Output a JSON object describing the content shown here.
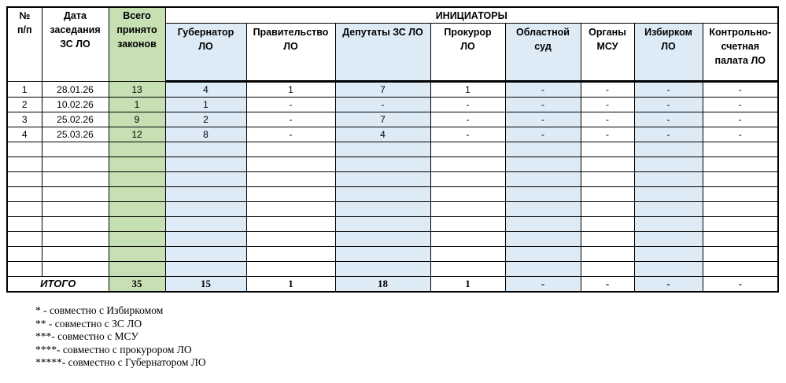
{
  "colors": {
    "total_column": "#c6e0b4",
    "initiator_highlight": "#ddebf7"
  },
  "header": {
    "num": [
      "№",
      "п/п"
    ],
    "date": [
      "Дата",
      "заседания",
      "ЗС ЛО"
    ],
    "total": [
      "Всего",
      "принято",
      "законов"
    ],
    "initiators_title": "ИНИЦИАТОРЫ",
    "initiators": [
      [
        "Губернатор",
        "ЛО"
      ],
      [
        "Правительство",
        "ЛО"
      ],
      [
        "Депутаты ЗС ЛО"
      ],
      [
        "Прокурор",
        "ЛО"
      ],
      [
        "Областной",
        "суд"
      ],
      [
        "Органы",
        "МСУ"
      ],
      [
        "Избирком",
        "ЛО"
      ],
      [
        "Контрольно-",
        "счетная",
        "палата ЛО"
      ]
    ]
  },
  "rows": [
    [
      "1",
      "28.01.26",
      "13",
      "4",
      "1",
      "7",
      "1",
      "-",
      "-",
      "-",
      "-"
    ],
    [
      "2",
      "10.02.26",
      "1",
      "1",
      "-",
      "-",
      "-",
      "-",
      "-",
      "-",
      "-"
    ],
    [
      "3",
      "25.02.26",
      "9",
      "2",
      "-",
      "7",
      "-",
      "-",
      "-",
      "-",
      "-"
    ],
    [
      "4",
      "25.03.26",
      "12",
      "8",
      "-",
      "4",
      "-",
      "-",
      "-",
      "-",
      "-"
    ],
    [
      "",
      "",
      "",
      "",
      "",
      "",
      "",
      "",
      "",
      "",
      ""
    ],
    [
      "",
      "",
      "",
      "",
      "",
      "",
      "",
      "",
      "",
      "",
      ""
    ],
    [
      "",
      "",
      "",
      "",
      "",
      "",
      "",
      "",
      "",
      "",
      ""
    ],
    [
      "",
      "",
      "",
      "",
      "",
      "",
      "",
      "",
      "",
      "",
      ""
    ],
    [
      "",
      "",
      "",
      "",
      "",
      "",
      "",
      "",
      "",
      "",
      ""
    ],
    [
      "",
      "",
      "",
      "",
      "",
      "",
      "",
      "",
      "",
      "",
      ""
    ],
    [
      "",
      "",
      "",
      "",
      "",
      "",
      "",
      "",
      "",
      "",
      ""
    ],
    [
      "",
      "",
      "",
      "",
      "",
      "",
      "",
      "",
      "",
      "",
      ""
    ],
    [
      "",
      "",
      "",
      "",
      "",
      "",
      "",
      "",
      "",
      "",
      ""
    ]
  ],
  "totals": {
    "label": "ИТОГО",
    "values": [
      "35",
      "15",
      "1",
      "18",
      "1",
      "-",
      "-",
      "-",
      "-"
    ]
  },
  "footnotes": [
    "* - совместно с Избиркомом",
    "** - совместно с ЗС ЛО",
    "***- совместно с МСУ",
    "****- совместно с прокурором ЛО",
    "*****- совместно с Губернатором ЛО"
  ]
}
